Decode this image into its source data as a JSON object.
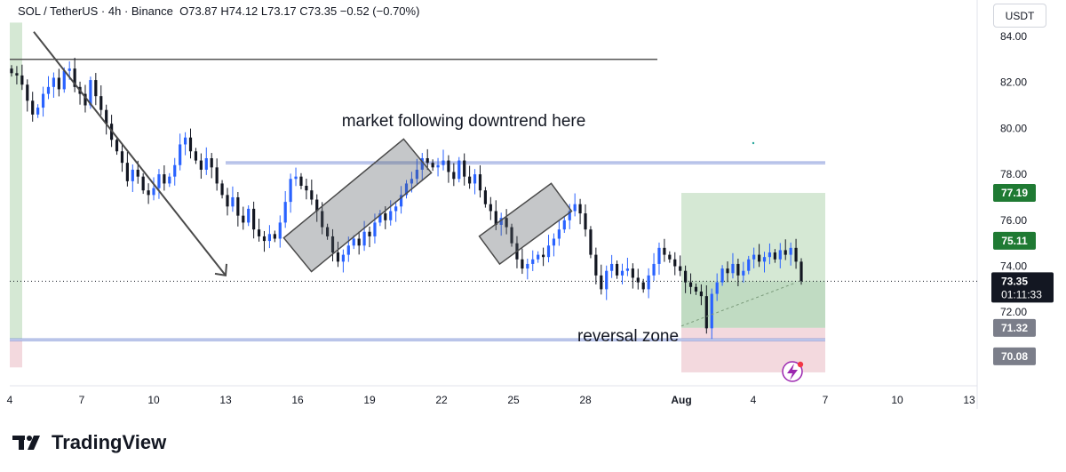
{
  "header": {
    "symbol": "SOL / TetherUS · 4h · Binance",
    "ohlc": "O73.87 H74.12 L73.17 C73.35 −0.52 (−0.70%)"
  },
  "currency_button": "USDT",
  "brand": {
    "name": "TradingView"
  },
  "colors": {
    "bull": "#2962ff",
    "bear": "#131722",
    "profit": "#d5e8d4",
    "loss": "#f3d9de",
    "accent": "#1e53e5",
    "trendline": "#4a4a4a"
  },
  "annotations": {
    "downtrend_text": "market following downtrend here",
    "reversal_text": "reversal zone"
  },
  "price_tags": {
    "target": "77.19",
    "entry": "75.11",
    "last_price": "73.35",
    "countdown": "01:11:33",
    "position_entry": "71.32",
    "stop": "70.08"
  },
  "chart_data": {
    "type": "candlestick",
    "title": "SOL / TetherUS · 4h · Binance",
    "ylim": [
      68.8,
      84.5
    ],
    "y_ticks": [
      "72.00",
      "74.00",
      "76.00",
      "78.00",
      "80.00",
      "82.00",
      "84.00"
    ],
    "x_ticks": [
      "4",
      "7",
      "10",
      "13",
      "16",
      "19",
      "22",
      "25",
      "28",
      "Aug",
      "4",
      "7",
      "10",
      "13"
    ],
    "x_range": [
      "Jul 4",
      "Aug 14"
    ],
    "last_close": 73.35,
    "closes_4h": [
      82.4,
      82.3,
      81.9,
      81.2,
      80.6,
      80.9,
      81.5,
      81.8,
      82.2,
      81.7,
      82.5,
      82.6,
      81.8,
      81.5,
      81.0,
      82.1,
      81.4,
      80.8,
      80.2,
      79.5,
      79.0,
      78.5,
      77.7,
      78.2,
      77.9,
      77.3,
      77.1,
      77.4,
      78.0,
      77.6,
      77.9,
      78.4,
      79.3,
      79.6,
      79.0,
      78.6,
      78.2,
      78.7,
      78.3,
      77.6,
      77.1,
      76.6,
      77.0,
      76.2,
      75.9,
      76.5,
      75.6,
      75.3,
      75.1,
      75.4,
      75.2,
      75.9,
      76.8,
      77.8,
      77.9,
      77.5,
      77.3,
      76.9,
      76.4,
      75.7,
      75.3,
      74.6,
      74.2,
      74.5,
      74.9,
      75.2,
      74.9,
      75.5,
      75.3,
      75.9,
      76.3,
      76.0,
      76.4,
      76.6,
      77.1,
      77.6,
      77.8,
      78.2,
      78.7,
      78.5,
      78.3,
      78.4,
      78.6,
      78.1,
      77.8,
      78.6,
      77.9,
      77.6,
      78.0,
      77.3,
      76.7,
      76.4,
      75.8,
      76.1,
      75.7,
      75.0,
      74.3,
      73.9,
      74.1,
      74.3,
      74.5,
      74.4,
      74.9,
      75.2,
      75.6,
      76.0,
      76.4,
      76.7,
      76.3,
      75.6,
      74.5,
      73.6,
      73.0,
      73.8,
      74.1,
      73.6,
      73.8,
      73.9,
      73.5,
      73.3,
      73.0,
      73.6,
      74.1,
      74.8,
      74.5,
      74.3,
      74.0,
      73.8,
      73.3,
      73.1,
      72.9,
      72.7,
      71.3,
      72.8,
      73.3,
      73.9,
      73.7,
      74.1,
      73.6,
      73.8,
      74.3,
      74.5,
      74.2,
      74.4,
      74.6,
      74.3,
      74.7,
      74.5,
      74.8,
      74.2,
      73.35
    ],
    "series": [
      {
        "name": "horizontal resistance line",
        "value": 83.0,
        "x": [
          "Jul 4",
          "Jul 31"
        ]
      },
      {
        "name": "upper horizontal line",
        "value": 78.5,
        "x": [
          "Jul 13",
          "Aug 7"
        ]
      },
      {
        "name": "lower horizontal line",
        "value": 70.8,
        "x": [
          "Jul 4",
          "Aug 7"
        ]
      },
      {
        "name": "downtrend arrow",
        "points": [
          [
            "Jul 5",
            84.2
          ],
          [
            "Jul 13",
            73.6
          ]
        ]
      }
    ],
    "channels": [
      {
        "from": [
          "Jul 16",
          74.5
        ],
        "to": [
          "Jul 21",
          78.8
        ],
        "width": 1.9
      },
      {
        "from": [
          "Jul 24",
          74.7
        ],
        "to": [
          "Jul 27",
          77.0
        ],
        "width": 1.5
      }
    ],
    "position": {
      "entry": 71.32,
      "target": 77.19,
      "stop": 70.08,
      "start": "Aug 1",
      "end": "Aug 7"
    }
  }
}
